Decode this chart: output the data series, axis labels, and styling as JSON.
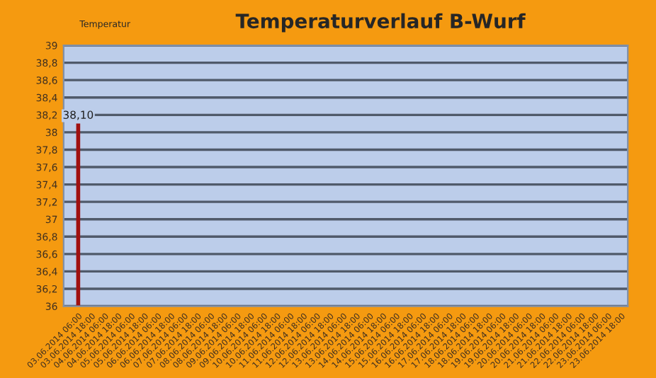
{
  "chart_data": {
    "type": "bar",
    "title": "Temperaturverlauf B-Wurf",
    "ylabel": "Temperatur",
    "categories": [
      "03.06.2014 06:00",
      "03.06.2014 18:00",
      "04.06.2014 06:00",
      "04.06.2014 18:00",
      "05.06.2014 06:00",
      "05.06.2014 18:00",
      "06.06.2014 06:00",
      "06.06.2014 18:00",
      "07.06.2014 06:00",
      "07.06.2014 18:00",
      "08.06.2014 06:00",
      "08.06.2014 18:00",
      "09.06.2014 06:00",
      "09.06.2014 18:00",
      "10.06.2014 06:00",
      "10.06.2014 18:00",
      "11.06.2014 06:00",
      "11.06.2014 18:00",
      "12.06.2014 06:00",
      "12.06.2014 18:00",
      "13.06.2014 06:00",
      "13.06.2014 18:00",
      "14.06.2014 06:00",
      "14.06.2014 18:00",
      "15.06.2014 06:00",
      "15.06.2014 18:00",
      "16.06.2014 06:00",
      "16.06.2014 18:00",
      "17.06.2014 06:00",
      "17.06.2014 18:00",
      "18.06.2014 06:00",
      "18.06.2014 18:00",
      "19.06.2014 06:00",
      "19.06.2014 18:00",
      "20.06.2014 06:00",
      "20.06.2014 18:00",
      "21.06.2014 06:00",
      "21.06.2014 18:00",
      "22.06.2014 06:00",
      "22.06.2014 18:00",
      "23.06.2014 06:00",
      "23.06.2014 18:00"
    ],
    "values": [
      38.1,
      null,
      null,
      null,
      null,
      null,
      null,
      null,
      null,
      null,
      null,
      null,
      null,
      null,
      null,
      null,
      null,
      null,
      null,
      null,
      null,
      null,
      null,
      null,
      null,
      null,
      null,
      null,
      null,
      null,
      null,
      null,
      null,
      null,
      null,
      null,
      null,
      null,
      null,
      null,
      null,
      null
    ],
    "value_labels": [
      "38,10",
      null,
      null,
      null,
      null,
      null,
      null,
      null,
      null,
      null,
      null,
      null,
      null,
      null,
      null,
      null,
      null,
      null,
      null,
      null,
      null,
      null,
      null,
      null,
      null,
      null,
      null,
      null,
      null,
      null,
      null,
      null,
      null,
      null,
      null,
      null,
      null,
      null,
      null,
      null,
      null,
      null
    ],
    "color": "#a01010",
    "ylim": [
      36,
      39
    ],
    "yticks": [
      36,
      {
        "value": 36.2,
        "label": "36,2"
      },
      {
        "value": 36.4,
        "label": "36,4"
      },
      {
        "value": 36.6,
        "label": "36,6"
      },
      {
        "value": 36.8,
        "label": "36,8"
      },
      37,
      {
        "value": 37.2,
        "label": "37,2"
      },
      {
        "value": 37.4,
        "label": "37,4"
      },
      {
        "value": 37.6,
        "label": "37,6"
      },
      {
        "value": 37.8,
        "label": "37,8"
      },
      38,
      {
        "value": 38.2,
        "label": "38,2"
      },
      {
        "value": 38.4,
        "label": "38,4"
      },
      {
        "value": 38.6,
        "label": "38,6"
      },
      {
        "value": 38.8,
        "label": "38,8"
      },
      39
    ],
    "grid": "y"
  }
}
